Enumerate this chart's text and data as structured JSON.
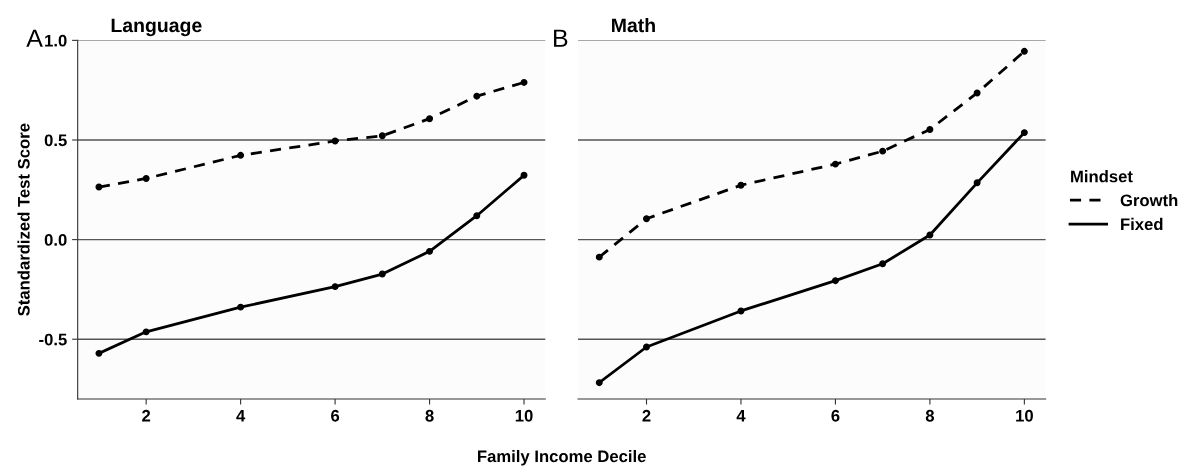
{
  "chart_data": [
    {
      "type": "line",
      "title": "Language",
      "annotations": [
        "A"
      ],
      "ylabel": "Standardized Test Score",
      "xlabel": "Family Income Decile",
      "x": [
        1,
        2,
        4,
        6,
        7,
        8,
        9,
        10
      ],
      "xlim": [
        0.55,
        10.45
      ],
      "xticks": [
        2,
        4,
        6,
        8,
        10
      ],
      "ylim": [
        -0.8,
        1.0
      ],
      "yticks": [
        {
          "value": -0.5,
          "label": "-0.5"
        },
        {
          "value": 0,
          "label": "0.0"
        },
        0.5,
        {
          "value": 1,
          "label": "1.0"
        }
      ],
      "grid": "y",
      "marker": "circle",
      "series": [
        {
          "color": "#000000",
          "line_style": "dashed",
          "values": [
            0.264,
            0.307,
            0.423,
            0.495,
            0.521,
            0.607,
            0.72,
            0.789
          ]
        },
        {
          "color": "#000000",
          "line_style": "solid",
          "values": [
            -0.571,
            -0.463,
            -0.339,
            -0.236,
            -0.173,
            -0.059,
            0.12,
            0.323
          ]
        }
      ]
    },
    {
      "type": "line",
      "title": "Math",
      "annotations": [
        "B"
      ],
      "legend_title": "Mindset",
      "x": [
        1,
        2,
        4,
        6,
        7,
        8,
        9,
        10
      ],
      "xlim": [
        0.55,
        10.45
      ],
      "xticks": [
        2,
        4,
        6,
        8,
        10
      ],
      "ylim": [
        -0.8,
        1.0
      ],
      "yticks": [
        -0.5,
        0,
        0.5,
        1
      ],
      "tick_labels": "x",
      "grid": "y",
      "marker": "circle",
      "legend": "right",
      "series": [
        {
          "name": "Growth",
          "color": "#000000",
          "line_style": "dashed",
          "values": [
            -0.088,
            0.105,
            0.273,
            0.379,
            0.444,
            0.553,
            0.736,
            0.945
          ]
        },
        {
          "name": "Fixed",
          "color": "#000000",
          "line_style": "solid",
          "values": [
            -0.718,
            -0.539,
            -0.358,
            -0.206,
            -0.121,
            0.023,
            0.285,
            0.537
          ]
        }
      ]
    }
  ]
}
